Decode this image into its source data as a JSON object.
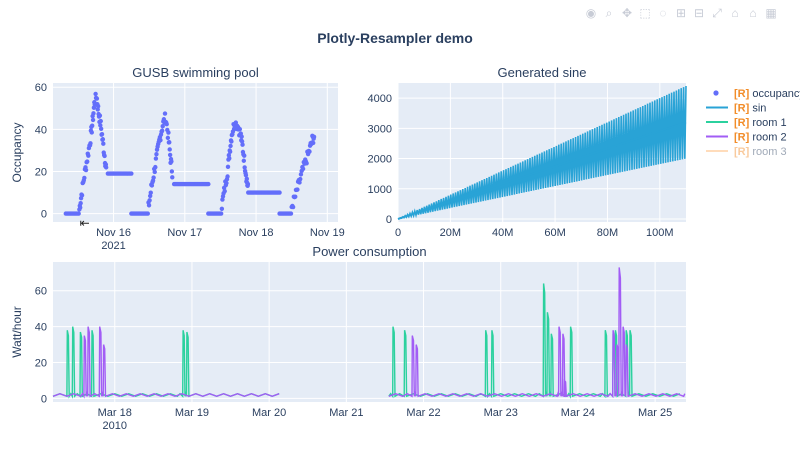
{
  "figure": {
    "title": "Plotly-Resampler demo"
  },
  "modebar": {
    "icons": [
      "camera-icon",
      "zoom-icon",
      "pan-icon",
      "box-select-icon",
      "lasso-icon",
      "zoom-in-icon",
      "zoom-out-icon",
      "autoscale-icon",
      "reset-axes-icon",
      "home-icon",
      "plotly-logo-icon"
    ],
    "glyphs": [
      "◉",
      "⌕",
      "✥",
      "⬚",
      "◌",
      "⊞",
      "⊟",
      "⤢",
      "⌂",
      "⌂",
      "▦"
    ]
  },
  "legend": {
    "items": [
      {
        "prefix": "[R]",
        "name": "occupancy",
        "marker": "dot",
        "color": "#636efa",
        "dim": false
      },
      {
        "prefix": "[R]",
        "name": "sin",
        "marker": "line",
        "color": "#29a3d6",
        "dim": false
      },
      {
        "prefix": "[R]",
        "name": "room 1",
        "marker": "line",
        "color": "#2bd19e",
        "dim": false
      },
      {
        "prefix": "[R]",
        "name": "room 2",
        "marker": "line",
        "color": "#a25df5",
        "dim": false
      },
      {
        "prefix": "[R]",
        "name": "room 3",
        "marker": "line",
        "color": "#ffb36b",
        "dim": true
      }
    ],
    "prefix_color": "#f28c28"
  },
  "chart_data": [
    {
      "id": "pool",
      "type": "scatter",
      "title": "GUSB swimming pool",
      "xlabel": "",
      "ylabel": "Occupancy",
      "x_ticks": [
        "Nov 16",
        "Nov 17",
        "Nov 18",
        "Nov 19"
      ],
      "x_tick_sub": "2021",
      "x_range_days": [
        0,
        4
      ],
      "x_tick_days": [
        0.85,
        1.85,
        2.85,
        3.85
      ],
      "ylim": [
        -4,
        62
      ],
      "y_ticks": [
        0,
        20,
        40,
        60
      ],
      "series": [
        {
          "name": "occupancy",
          "color": "#636efa",
          "segments": [
            {
              "kind": "flat",
              "x": [
                0.18,
                0.36
              ],
              "y": 0
            },
            {
              "kind": "curve",
              "points": [
                [
                  0.37,
                  2
                ],
                [
                  0.4,
                  9
                ],
                [
                  0.44,
                  18
                ],
                [
                  0.48,
                  26
                ],
                [
                  0.52,
                  34
                ],
                [
                  0.55,
                  42
                ],
                [
                  0.58,
                  52
                ],
                [
                  0.61,
                  56
                ],
                [
                  0.64,
                  48
                ],
                [
                  0.67,
                  42
                ],
                [
                  0.7,
                  34
                ],
                [
                  0.73,
                  26
                ],
                [
                  0.75,
                  20
                ]
              ]
            },
            {
              "kind": "flat",
              "x": [
                0.77,
                1.1
              ],
              "y": 19
            },
            {
              "kind": "flat",
              "x": [
                1.1,
                1.33
              ],
              "y": 0
            },
            {
              "kind": "curve",
              "points": [
                [
                  1.34,
                  3
                ],
                [
                  1.38,
                  12
                ],
                [
                  1.42,
                  20
                ],
                [
                  1.46,
                  28
                ],
                [
                  1.5,
                  36
                ],
                [
                  1.54,
                  42
                ],
                [
                  1.58,
                  46
                ],
                [
                  1.62,
                  36
                ],
                [
                  1.65,
                  26
                ],
                [
                  1.68,
                  18
                ]
              ]
            },
            {
              "kind": "flat",
              "x": [
                1.7,
                2.18
              ],
              "y": 14
            },
            {
              "kind": "flat",
              "x": [
                2.18,
                2.36
              ],
              "y": 0
            },
            {
              "kind": "curve",
              "points": [
                [
                  2.37,
                  4
                ],
                [
                  2.41,
                  12
                ],
                [
                  2.45,
                  20
                ],
                [
                  2.48,
                  30
                ],
                [
                  2.51,
                  38
                ],
                [
                  2.55,
                  43
                ],
                [
                  2.59,
                  42
                ],
                [
                  2.63,
                  38
                ],
                [
                  2.66,
                  32
                ],
                [
                  2.69,
                  24
                ],
                [
                  2.72,
                  16
                ],
                [
                  2.74,
                  11
                ]
              ]
            },
            {
              "kind": "flat",
              "x": [
                2.74,
                3.18
              ],
              "y": 10
            },
            {
              "kind": "flat",
              "x": [
                3.18,
                3.34
              ],
              "y": 0
            },
            {
              "kind": "curve",
              "points": [
                [
                  3.35,
                  3
                ],
                [
                  3.4,
                  8
                ],
                [
                  3.45,
                  14
                ],
                [
                  3.5,
                  20
                ],
                [
                  3.55,
                  25
                ],
                [
                  3.6,
                  30
                ],
                [
                  3.64,
                  35
                ],
                [
                  3.67,
                  37
                ]
              ]
            }
          ]
        }
      ]
    },
    {
      "id": "sine",
      "type": "line",
      "title": "Generated sine",
      "xlabel": "",
      "ylabel": "",
      "x_ticks": [
        "0",
        "20M",
        "40M",
        "60M",
        "80M",
        "100M"
      ],
      "x_tick_vals": [
        0,
        20,
        40,
        60,
        80,
        100
      ],
      "x_range": [
        0,
        110
      ],
      "ylim": [
        -100,
        4500
      ],
      "y_ticks": [
        0,
        1000,
        2000,
        3000,
        4000
      ],
      "series": [
        {
          "name": "sin",
          "color": "#29a3d6",
          "upper_end": 4400,
          "lower_end": 2000,
          "mean_end": 3200,
          "cycles": 120
        }
      ]
    },
    {
      "id": "power",
      "type": "line",
      "title": "Power consumption",
      "xlabel": "",
      "ylabel": "Watt/hour",
      "x_ticks": [
        "Mar 18",
        "Mar 19",
        "Mar 20",
        "Mar 21",
        "Mar 22",
        "Mar 23",
        "Mar 24",
        "Mar 25"
      ],
      "x_tick_sub": "2010",
      "x_range_days": [
        -0.8,
        7.4
      ],
      "x_tick_days": [
        0,
        1,
        2,
        3,
        4,
        5,
        6,
        7
      ],
      "ylim": [
        -2,
        76
      ],
      "y_ticks": [
        0,
        20,
        40,
        60
      ],
      "gap_days": [
        2.15,
        3.55
      ],
      "series": [
        {
          "name": "room 1",
          "color": "#2bd19e",
          "spikes": [
            [
              -0.62,
              38
            ],
            [
              -0.55,
              40
            ],
            [
              -0.45,
              37
            ],
            [
              -0.3,
              38
            ],
            [
              0.88,
              38
            ],
            [
              0.93,
              37
            ],
            [
              3.6,
              40
            ],
            [
              3.75,
              38
            ],
            [
              4.8,
              38
            ],
            [
              4.88,
              38
            ],
            [
              5.55,
              64
            ],
            [
              5.6,
              48
            ],
            [
              5.65,
              36
            ],
            [
              5.9,
              40
            ],
            [
              6.35,
              38
            ],
            [
              6.45,
              36
            ],
            [
              6.48,
              38
            ],
            [
              6.62,
              38
            ],
            [
              6.67,
              38
            ]
          ]
        },
        {
          "name": "room 2",
          "color": "#a25df5",
          "spikes": [
            [
              -0.4,
              35
            ],
            [
              -0.35,
              40
            ],
            [
              -0.2,
              40
            ],
            [
              -0.15,
              30
            ],
            [
              3.85,
              35
            ],
            [
              3.9,
              30
            ],
            [
              5.75,
              40
            ],
            [
              5.8,
              36
            ],
            [
              5.82,
              10
            ],
            [
              6.45,
              38
            ],
            [
              6.5,
              30
            ],
            [
              6.53,
              73
            ],
            [
              6.58,
              40
            ],
            [
              6.62,
              30
            ]
          ]
        },
        {
          "name": "room 3",
          "color": "#ffb36b",
          "visible": false
        }
      ]
    }
  ]
}
